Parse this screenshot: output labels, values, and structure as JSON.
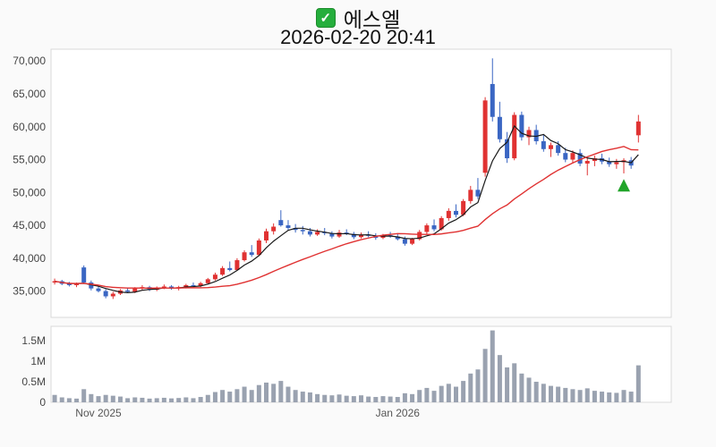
{
  "header": {
    "title": "에스엘",
    "datetime": "2026-02-20 20:41",
    "checkbox_glyph": "✓",
    "checkbox_color": "#25ae3c"
  },
  "chart_data": {
    "type": "candlestick",
    "title": "에스엘",
    "subtitle": "2026-02-20 20:41",
    "slots": 85,
    "price_axis": {
      "range": [
        31000,
        71800
      ],
      "ticks": [
        {
          "value": 70000,
          "label": "70,000"
        },
        {
          "value": 65000,
          "label": "65,000"
        },
        {
          "value": 60000,
          "label": "60,000"
        },
        {
          "value": 55000,
          "label": "55,000"
        },
        {
          "value": 50000,
          "label": "50,000"
        },
        {
          "value": 45000,
          "label": "45,000"
        },
        {
          "value": 40000,
          "label": "40,000"
        },
        {
          "value": 35000,
          "label": "35,000"
        }
      ]
    },
    "volume_axis": {
      "range": [
        0,
        1850000
      ],
      "ticks": [
        {
          "value": 1500000,
          "label": "1.5M"
        },
        {
          "value": 1000000,
          "label": "1M"
        },
        {
          "value": 500000,
          "label": "0.5M"
        },
        {
          "value": 0,
          "label": "0"
        }
      ]
    },
    "x_ticks": [
      {
        "index": 6,
        "label": "Nov 2025"
      },
      {
        "index": 47,
        "label": "Jan 2026"
      }
    ],
    "colors": {
      "up": "#e03232",
      "down": "#3a66c3",
      "volume": "#9aa2b0",
      "border": "#d9d9d9",
      "marker": "#22a52b",
      "plot_bg": "#ffffff"
    },
    "overlays": [
      {
        "name": "ma-short",
        "period": 5,
        "color": "#1a1a1a",
        "width": 1.2
      },
      {
        "name": "ma-long",
        "period": 20,
        "color": "#e03232",
        "width": 1.4
      }
    ],
    "marker": {
      "index": 78,
      "price": 51100,
      "shape": "triangle-up"
    },
    "candles": [
      [
        36300,
        36900,
        36000,
        36500,
        180000
      ],
      [
        36500,
        36700,
        35900,
        36100,
        120000
      ],
      [
        36100,
        36400,
        35700,
        35900,
        100000
      ],
      [
        35900,
        36300,
        35600,
        36100,
        90000
      ],
      [
        38600,
        38900,
        36100,
        36300,
        320000
      ],
      [
        36300,
        36600,
        35100,
        35400,
        200000
      ],
      [
        35400,
        35700,
        34800,
        35000,
        150000
      ],
      [
        35000,
        35300,
        33900,
        34200,
        180000
      ],
      [
        34200,
        34900,
        33800,
        34600,
        160000
      ],
      [
        34600,
        35300,
        34400,
        35100,
        140000
      ],
      [
        35100,
        35500,
        34700,
        34900,
        100000
      ],
      [
        34900,
        35600,
        34700,
        35400,
        120000
      ],
      [
        35400,
        35900,
        35100,
        35600,
        110000
      ],
      [
        35600,
        35800,
        35000,
        35200,
        90000
      ],
      [
        35200,
        35700,
        35000,
        35500,
        100000
      ],
      [
        35500,
        36000,
        35300,
        35700,
        110000
      ],
      [
        35700,
        35900,
        35200,
        35400,
        95000
      ],
      [
        35400,
        35800,
        35100,
        35600,
        105000
      ],
      [
        35600,
        36100,
        35400,
        35900,
        120000
      ],
      [
        35900,
        36300,
        35600,
        35800,
        100000
      ],
      [
        35800,
        36400,
        35600,
        36200,
        130000
      ],
      [
        36200,
        37000,
        36000,
        36800,
        180000
      ],
      [
        36800,
        37800,
        36600,
        37500,
        250000
      ],
      [
        37500,
        38800,
        37300,
        38500,
        300000
      ],
      [
        38500,
        39500,
        38000,
        38200,
        260000
      ],
      [
        38200,
        40000,
        38100,
        39700,
        320000
      ],
      [
        39700,
        41200,
        39500,
        40900,
        380000
      ],
      [
        40900,
        42000,
        40200,
        40500,
        300000
      ],
      [
        40500,
        43000,
        40400,
        42700,
        420000
      ],
      [
        42700,
        44500,
        42300,
        44100,
        480000
      ],
      [
        44100,
        45300,
        43600,
        44800,
        450000
      ],
      [
        45800,
        47300,
        44800,
        45000,
        520000
      ],
      [
        45000,
        45800,
        44300,
        44600,
        380000
      ],
      [
        44600,
        45200,
        43900,
        44300,
        300000
      ],
      [
        44300,
        44900,
        43600,
        44100,
        260000
      ],
      [
        44100,
        44600,
        43300,
        43600,
        240000
      ],
      [
        43600,
        44400,
        43400,
        44000,
        200000
      ],
      [
        44000,
        44600,
        43500,
        43800,
        180000
      ],
      [
        43800,
        44100,
        43000,
        43300,
        170000
      ],
      [
        43300,
        44300,
        43100,
        43900,
        190000
      ],
      [
        43900,
        44400,
        43500,
        43700,
        160000
      ],
      [
        43700,
        44000,
        42900,
        43200,
        150000
      ],
      [
        43200,
        43900,
        43000,
        43600,
        170000
      ],
      [
        43600,
        44100,
        43200,
        43400,
        140000
      ],
      [
        43400,
        43800,
        42800,
        43100,
        130000
      ],
      [
        43100,
        43700,
        42900,
        43500,
        150000
      ],
      [
        43500,
        44000,
        43100,
        43300,
        140000
      ],
      [
        43300,
        43800,
        42700,
        42900,
        130000
      ],
      [
        42900,
        43300,
        41900,
        42200,
        220000
      ],
      [
        42200,
        43100,
        42000,
        42900,
        200000
      ],
      [
        42900,
        44300,
        42700,
        44000,
        300000
      ],
      [
        44000,
        45300,
        43700,
        45000,
        350000
      ],
      [
        45000,
        45900,
        44100,
        44400,
        280000
      ],
      [
        44400,
        46400,
        44200,
        46100,
        400000
      ],
      [
        46100,
        47600,
        45700,
        47200,
        450000
      ],
      [
        47200,
        48200,
        46200,
        46600,
        380000
      ],
      [
        46600,
        49000,
        46400,
        48700,
        520000
      ],
      [
        48700,
        51000,
        48300,
        50400,
        700000
      ],
      [
        50400,
        52200,
        49000,
        49400,
        800000
      ],
      [
        53000,
        64500,
        52400,
        64000,
        1300000
      ],
      [
        66500,
        70400,
        60800,
        61500,
        1750000
      ],
      [
        61500,
        63800,
        57600,
        58100,
        1150000
      ],
      [
        58100,
        59200,
        54500,
        55200,
        850000
      ],
      [
        55200,
        62200,
        54900,
        61800,
        950000
      ],
      [
        61800,
        62300,
        57900,
        58400,
        700000
      ],
      [
        58400,
        60000,
        57200,
        59500,
        600000
      ],
      [
        59500,
        60300,
        57300,
        57800,
        500000
      ],
      [
        57800,
        58800,
        56200,
        56600,
        450000
      ],
      [
        56600,
        57600,
        55400,
        57200,
        400000
      ],
      [
        57200,
        57800,
        55600,
        56000,
        380000
      ],
      [
        56000,
        56800,
        54600,
        55000,
        350000
      ],
      [
        55000,
        56400,
        54400,
        56000,
        320000
      ],
      [
        56000,
        56600,
        54000,
        54400,
        300000
      ],
      [
        54400,
        55200,
        52600,
        54800,
        340000
      ],
      [
        54800,
        55600,
        54000,
        55200,
        280000
      ],
      [
        55200,
        55900,
        54300,
        54700,
        260000
      ],
      [
        54700,
        55300,
        53900,
        54300,
        240000
      ],
      [
        54300,
        55100,
        53600,
        54600,
        230000
      ],
      [
        54600,
        55200,
        52900,
        54900,
        300000
      ],
      [
        54900,
        55400,
        53600,
        54100,
        260000
      ],
      [
        58700,
        61800,
        57600,
        60800,
        900000
      ]
    ]
  }
}
